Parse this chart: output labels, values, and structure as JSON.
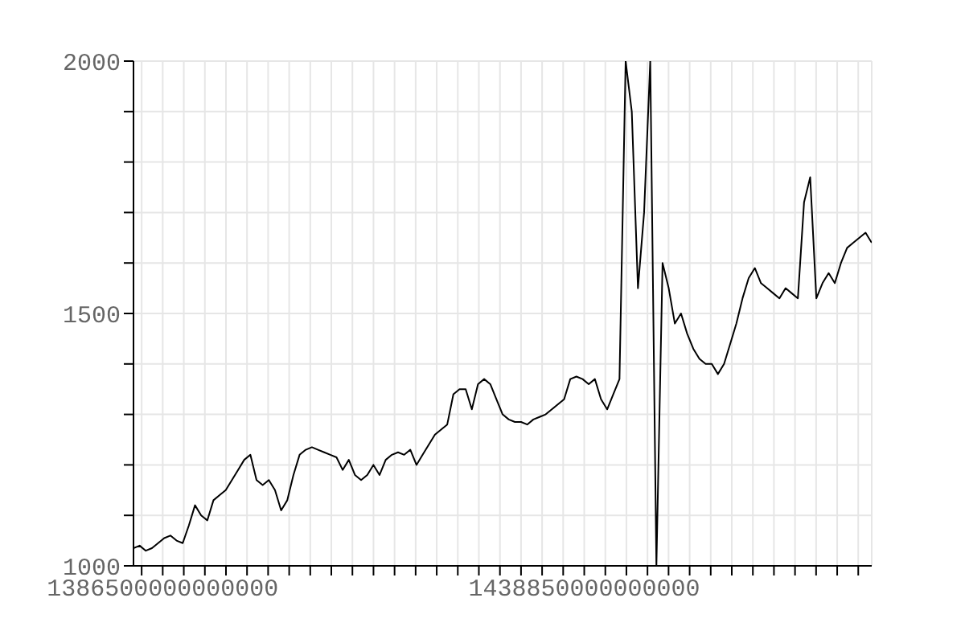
{
  "chart_data": {
    "type": "line",
    "x": [
      1382870000000000,
      1383634000000000,
      1384398000000000,
      1385162000000000,
      1385926000000000,
      1386690000000000,
      1387454000000000,
      1388218000000000,
      1388982000000000,
      1389746000000000,
      1390510000000000,
      1391274000000000,
      1392038000000000,
      1392802000000000,
      1393566000000000,
      1394330000000000,
      1395094000000000,
      1395858000000000,
      1396622000000000,
      1397386000000000,
      1398150000000000,
      1398914000000000,
      1399678000000000,
      1400442000000000,
      1401206000000000,
      1401970000000000,
      1402734000000000,
      1403498000000000,
      1404262000000000,
      1405026000000000,
      1405790000000000,
      1406554000000000,
      1407318000000000,
      1408082000000000,
      1408846000000000,
      1409610000000000,
      1410374000000000,
      1411138000000000,
      1411902000000000,
      1412666000000000,
      1413430000000000,
      1414194000000000,
      1414958000000000,
      1415722000000000,
      1416486000000000,
      1417250000000000,
      1418014000000000,
      1418778000000000,
      1419542000000000,
      1420306000000000,
      1421070000000000,
      1421834000000000,
      1422598000000000,
      1423362000000000,
      1424126000000000,
      1424890000000000,
      1425654000000000,
      1426418000000000,
      1427182000000000,
      1427946000000000,
      1428710000000000,
      1429474000000000,
      1430238000000000,
      1431002000000000,
      1431766000000000,
      1432530000000000,
      1433294000000000,
      1434058000000000,
      1434822000000000,
      1435586000000000,
      1436350000000000,
      1437114000000000,
      1437878000000000,
      1438642000000000,
      1439406000000000,
      1440170000000000,
      1440934000000000,
      1441698000000000,
      1442462000000000,
      1443226000000000,
      1443990000000000,
      1444754000000000,
      1445518000000000,
      1446282000000000,
      1447046000000000,
      1447810000000000,
      1448574000000000,
      1449338000000000,
      1450102000000000,
      1450866000000000,
      1451630000000000,
      1452394000000000,
      1453158000000000,
      1453922000000000,
      1454686000000000,
      1455450000000000,
      1456214000000000,
      1456978000000000,
      1457742000000000,
      1458506000000000,
      1459270000000000,
      1460034000000000,
      1460798000000000,
      1461562000000000,
      1462326000000000,
      1463090000000000,
      1463854000000000,
      1464618000000000,
      1465382000000000,
      1466146000000000,
      1466910000000000,
      1467674000000000,
      1468438000000000,
      1469202000000000,
      1469966000000000,
      1470730000000000,
      1471494000000000,
      1472258000000000,
      1473022000000000,
      1473786000000000,
      1474550000000000
    ],
    "series": [
      {
        "color": "#000000",
        "values": [
          1035,
          1040,
          1030,
          1035,
          1045,
          1055,
          1060,
          1050,
          1045,
          1080,
          1120,
          1100,
          1090,
          1130,
          1140,
          1150,
          1170,
          1190,
          1210,
          1220,
          1170,
          1160,
          1170,
          1150,
          1110,
          1130,
          1180,
          1220,
          1230,
          1235,
          1230,
          1225,
          1220,
          1215,
          1190,
          1210,
          1180,
          1170,
          1180,
          1200,
          1180,
          1210,
          1220,
          1225,
          1220,
          1230,
          1200,
          1220,
          1240,
          1260,
          1270,
          1280,
          1340,
          1350,
          1350,
          1310,
          1360,
          1370,
          1360,
          1330,
          1300,
          1290,
          1285,
          1285,
          1280,
          1290,
          1295,
          1300,
          1310,
          1320,
          1330,
          1370,
          1375,
          1370,
          1360,
          1370,
          1330,
          1310,
          1340,
          1370,
          2000,
          1900,
          1550,
          1700,
          2000,
          1000,
          1600,
          1550,
          1480,
          1500,
          1460,
          1430,
          1410,
          1400,
          1400,
          1380,
          1400,
          1440,
          1480,
          1530,
          1570,
          1590,
          1560,
          1550,
          1540,
          1530,
          1550,
          1540,
          1530,
          1720,
          1770,
          1530,
          1560,
          1580,
          1560,
          1600,
          1630,
          1640,
          1650,
          1660,
          1640
        ]
      }
    ],
    "xlim": [
      1382870000000000,
      1474550000000000
    ],
    "xticks": [
      {
        "value": 1383882500000000,
        "label": null
      },
      1386500000000000,
      {
        "value": 1389117500000000,
        "label": null
      },
      {
        "value": 1391735000000000,
        "label": null
      },
      {
        "value": 1394352500000000,
        "label": null
      },
      {
        "value": 1396970000000000,
        "label": null
      },
      {
        "value": 1399587500000000,
        "label": null
      },
      {
        "value": 1402205000000000,
        "label": null
      },
      {
        "value": 1404822500000000,
        "label": null
      },
      {
        "value": 1407440000000000,
        "label": null
      },
      {
        "value": 1410057500000000,
        "label": null
      },
      {
        "value": 1412675000000000,
        "label": null
      },
      {
        "value": 1415292500000000,
        "label": null
      },
      {
        "value": 1417910000000000,
        "label": null
      },
      {
        "value": 1420527500000000,
        "label": null
      },
      {
        "value": 1423145000000000,
        "label": null
      },
      {
        "value": 1425762500000000,
        "label": null
      },
      {
        "value": 1428380000000000,
        "label": null
      },
      {
        "value": 1430997500000000,
        "label": null
      },
      {
        "value": 1433615000000000,
        "label": null
      },
      {
        "value": 1436232500000000,
        "label": null
      },
      1438850000000000,
      {
        "value": 1441467500000000,
        "label": null
      },
      {
        "value": 1444085000000000,
        "label": null
      },
      {
        "value": 1446702500000000,
        "label": null
      },
      {
        "value": 1449320000000000,
        "label": null
      },
      {
        "value": 1451937500000000,
        "label": null
      },
      {
        "value": 1454555000000000,
        "label": null
      },
      {
        "value": 1457172500000000,
        "label": null
      },
      {
        "value": 1459790000000000,
        "label": null
      },
      {
        "value": 1462407500000000,
        "label": null
      },
      {
        "value": 1465025000000000,
        "label": null
      },
      {
        "value": 1467642500000000,
        "label": null
      },
      {
        "value": 1470260000000000,
        "label": null
      },
      {
        "value": 1472877500000000,
        "label": null
      }
    ],
    "ylim": [
      1000,
      2000
    ],
    "yticks": [
      1000,
      {
        "value": 1100,
        "label": null
      },
      {
        "value": 1200,
        "label": null
      },
      {
        "value": 1300,
        "label": null
      },
      {
        "value": 1400,
        "label": null
      },
      1500,
      {
        "value": 1600,
        "label": null
      },
      {
        "value": 1700,
        "label": null
      },
      {
        "value": 1800,
        "label": null
      },
      {
        "value": 1900,
        "label": null
      },
      2000
    ],
    "grid": true,
    "marker": "none",
    "line_style": "solid"
  }
}
